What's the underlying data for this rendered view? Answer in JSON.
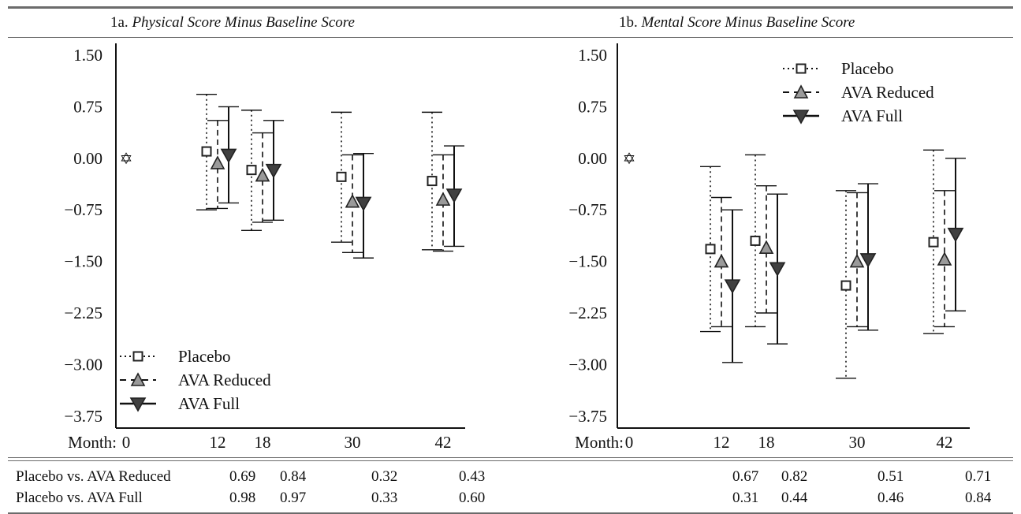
{
  "panels": [
    {
      "prefix": "1a. ",
      "title": "Physical Score Minus Baseline Score"
    },
    {
      "prefix": "1b. ",
      "title": "Mental Score Minus Baseline Score"
    }
  ],
  "x_axis_label": "Month:",
  "baseline_marker": "✡",
  "chart_data": [
    {
      "type": "scatter",
      "title": "1a. Physical Score Minus Baseline Score",
      "xlabel": "Month:",
      "ylabel": "",
      "x": [
        0,
        12,
        18,
        30,
        42
      ],
      "x_ticks": [
        "0",
        "12",
        "18",
        "30",
        "42"
      ],
      "y_ticks": [
        "1.50",
        "0.75",
        "0.00",
        "−0.75",
        "−1.50",
        "−2.25",
        "−3.00",
        "−3.75"
      ],
      "ylim": [
        -3.75,
        1.5
      ],
      "legend_position": "bottom-left",
      "baseline": {
        "x": 0,
        "y": 0
      },
      "series": [
        {
          "name": "Placebo",
          "marker": "open-square",
          "line": "dotted",
          "color": "#ffffff",
          "points": [
            {
              "x": 12,
              "mean": 0.1,
              "lower": -0.75,
              "upper": 0.93
            },
            {
              "x": 18,
              "mean": -0.17,
              "lower": -1.05,
              "upper": 0.7
            },
            {
              "x": 30,
              "mean": -0.27,
              "lower": -1.22,
              "upper": 0.67
            },
            {
              "x": 42,
              "mean": -0.33,
              "lower": -1.33,
              "upper": 0.67
            }
          ]
        },
        {
          "name": "AVA Reduced",
          "marker": "up-triangle",
          "line": "dashed",
          "color": "#9a9a9a",
          "points": [
            {
              "x": 12,
              "mean": -0.07,
              "lower": -0.73,
              "upper": 0.55
            },
            {
              "x": 18,
              "mean": -0.25,
              "lower": -0.93,
              "upper": 0.37
            },
            {
              "x": 30,
              "mean": -0.63,
              "lower": -1.37,
              "upper": 0.05
            },
            {
              "x": 42,
              "mean": -0.6,
              "lower": -1.35,
              "upper": 0.05
            }
          ]
        },
        {
          "name": "AVA Full",
          "marker": "down-triangle",
          "line": "solid",
          "color": "#404040",
          "points": [
            {
              "x": 12,
              "mean": 0.05,
              "lower": -0.65,
              "upper": 0.75
            },
            {
              "x": 18,
              "mean": -0.17,
              "lower": -0.9,
              "upper": 0.55
            },
            {
              "x": 30,
              "mean": -0.65,
              "lower": -1.45,
              "upper": 0.07
            },
            {
              "x": 42,
              "mean": -0.53,
              "lower": -1.28,
              "upper": 0.18
            }
          ]
        }
      ]
    },
    {
      "type": "scatter",
      "title": "1b. Mental Score Minus Baseline Score",
      "xlabel": "Month:",
      "ylabel": "",
      "x": [
        0,
        12,
        18,
        30,
        42
      ],
      "x_ticks": [
        "0",
        "12",
        "18",
        "30",
        "42"
      ],
      "y_ticks": [
        "1.50",
        "0.75",
        "0.00",
        "−0.75",
        "−1.50",
        "−2.25",
        "−3.00",
        "−3.75"
      ],
      "ylim": [
        -3.75,
        1.5
      ],
      "legend_position": "top-right",
      "baseline": {
        "x": 0,
        "y": 0
      },
      "series": [
        {
          "name": "Placebo",
          "marker": "open-square",
          "line": "dotted",
          "color": "#ffffff",
          "points": [
            {
              "x": 12,
              "mean": -1.32,
              "lower": -2.52,
              "upper": -0.12
            },
            {
              "x": 18,
              "mean": -1.2,
              "lower": -2.45,
              "upper": 0.05
            },
            {
              "x": 30,
              "mean": -1.85,
              "lower": -3.2,
              "upper": -0.47
            },
            {
              "x": 42,
              "mean": -1.22,
              "lower": -2.55,
              "upper": 0.12
            }
          ]
        },
        {
          "name": "AVA Reduced",
          "marker": "up-triangle",
          "line": "dashed",
          "color": "#9a9a9a",
          "points": [
            {
              "x": 12,
              "mean": -1.5,
              "lower": -2.45,
              "upper": -0.57
            },
            {
              "x": 18,
              "mean": -1.3,
              "lower": -2.25,
              "upper": -0.4
            },
            {
              "x": 30,
              "mean": -1.5,
              "lower": -2.45,
              "upper": -0.5
            },
            {
              "x": 42,
              "mean": -1.47,
              "lower": -2.45,
              "upper": -0.47
            }
          ]
        },
        {
          "name": "AVA Full",
          "marker": "down-triangle",
          "line": "solid",
          "color": "#404040",
          "points": [
            {
              "x": 12,
              "mean": -1.85,
              "lower": -2.97,
              "upper": -0.75
            },
            {
              "x": 18,
              "mean": -1.6,
              "lower": -2.7,
              "upper": -0.52
            },
            {
              "x": 30,
              "mean": -1.47,
              "lower": -2.5,
              "upper": -0.37
            },
            {
              "x": 42,
              "mean": -1.1,
              "lower": -2.22,
              "upper": 0.0
            }
          ]
        }
      ]
    }
  ],
  "stats_table": {
    "rows": [
      {
        "label": "Placebo vs. AVA Reduced",
        "left": [
          "0.69",
          "0.84",
          "0.32",
          "0.43"
        ],
        "right": [
          "0.67",
          "0.82",
          "0.51",
          "0.71"
        ]
      },
      {
        "label": "Placebo vs. AVA Full",
        "left": [
          "0.98",
          "0.97",
          "0.33",
          "0.60"
        ],
        "right": [
          "0.31",
          "0.44",
          "0.46",
          "0.84"
        ]
      }
    ]
  }
}
